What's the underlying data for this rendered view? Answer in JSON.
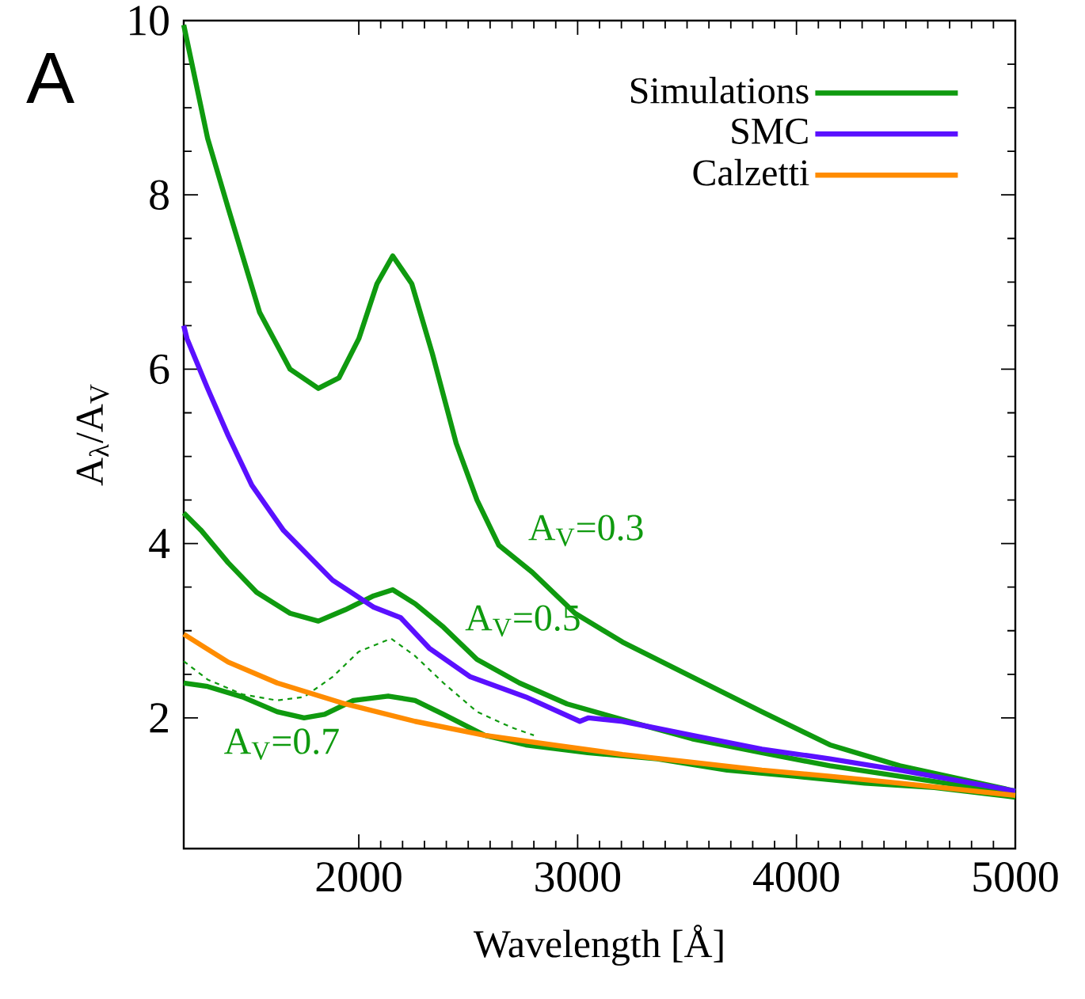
{
  "chart_data": {
    "type": "line",
    "xlabel": "Wavelength [Å]",
    "ylabel": "A$_{λ}$/A$_{V}$",
    "xlim": [
      1200,
      5000
    ],
    "ylim": [
      0.5,
      10
    ],
    "xticks": [
      2000,
      3000,
      4000,
      5000
    ],
    "yticks": [
      2,
      4,
      6,
      8,
      10
    ],
    "legend": "top right",
    "series": [
      {
        "name": "Simulations",
        "color": "#0f9a0f",
        "x": [
          1200,
          1309,
          1403,
          1547,
          1686,
          1815,
          1909,
          2000,
          2083,
          2155,
          2242,
          2336,
          2445,
          2540,
          2640,
          2793,
          2988,
          3205,
          3523,
          3842,
          4153,
          4472,
          5000
        ],
        "values": [
          9.95,
          8.65,
          7.85,
          6.65,
          6.0,
          5.78,
          5.9,
          6.35,
          6.98,
          7.3,
          6.98,
          6.18,
          5.15,
          4.5,
          3.98,
          3.67,
          3.2,
          2.87,
          2.47,
          2.07,
          1.69,
          1.45,
          1.16
        ]
      },
      {
        "name": "SMC",
        "color": "#5a10ff",
        "x": [
          1200,
          1215,
          1309,
          1403,
          1511,
          1656,
          1880,
          2068,
          2191,
          2322,
          2510,
          2763,
          3010,
          3050,
          3205,
          3523,
          3842,
          4153,
          4472,
          5000
        ],
        "values": [
          6.5,
          6.35,
          5.78,
          5.24,
          4.67,
          4.15,
          3.58,
          3.27,
          3.15,
          2.8,
          2.47,
          2.24,
          1.96,
          2.0,
          1.96,
          1.8,
          1.64,
          1.53,
          1.4,
          1.16
        ]
      },
      {
        "name": "Calzetti",
        "color": "#ff8c00",
        "x": [
          1200,
          1403,
          1627,
          1938,
          2257,
          2575,
          2886,
          3205,
          3523,
          3842,
          4153,
          4472,
          5000
        ],
        "values": [
          2.96,
          2.64,
          2.4,
          2.16,
          1.96,
          1.8,
          1.69,
          1.58,
          1.49,
          1.4,
          1.33,
          1.25,
          1.11
        ]
      },
      {
        "color": "#0f9a0f",
        "x": [
          1200,
          1280,
          1403,
          1533,
          1686,
          1815,
          1938,
          2068,
          2155,
          2257,
          2387,
          2540,
          2734,
          2952,
          3205,
          3523,
          3842,
          4153,
          4472,
          5000
        ],
        "values": [
          4.35,
          4.15,
          3.78,
          3.44,
          3.2,
          3.11,
          3.24,
          3.4,
          3.47,
          3.31,
          3.04,
          2.67,
          2.4,
          2.16,
          1.98,
          1.76,
          1.6,
          1.45,
          1.33,
          1.13
        ]
      },
      {
        "color": "#0f9a0f",
        "x": [
          1200,
          1309,
          1468,
          1627,
          1750,
          1844,
          1975,
          2134,
          2257,
          2387,
          2575,
          2763,
          3046,
          3364,
          3683,
          3994,
          4312,
          4630,
          5000
        ],
        "values": [
          2.4,
          2.36,
          2.24,
          2.07,
          2.0,
          2.04,
          2.2,
          2.25,
          2.2,
          2.04,
          1.8,
          1.69,
          1.6,
          1.53,
          1.4,
          1.33,
          1.25,
          1.2,
          1.09
        ]
      },
      {
        "color": "#0f9a0f",
        "line_style": "dashed",
        "x": [
          1200,
          1309,
          1468,
          1627,
          1750,
          1880,
          2000,
          2148,
          2257,
          2387,
          2540,
          2698,
          2800
        ],
        "values": [
          2.65,
          2.44,
          2.27,
          2.2,
          2.24,
          2.47,
          2.76,
          2.91,
          2.71,
          2.4,
          2.07,
          1.89,
          1.8
        ]
      }
    ],
    "annotations": [
      "A",
      "A$_{V}$=0.3",
      "A$_{V}$=0.5",
      "A$_{V}$=0.7"
    ]
  }
}
